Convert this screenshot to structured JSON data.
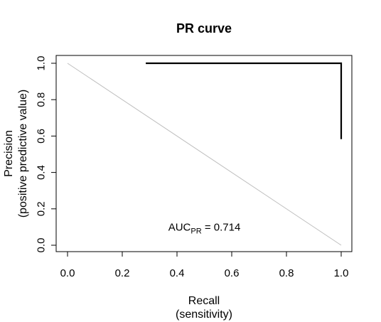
{
  "chart_data": {
    "type": "line",
    "title": "PR curve",
    "xlabel": "Recall",
    "xlabel_sub": "(sensitivity)",
    "ylabel": "Precision",
    "ylabel_sub": "(positive predictive value)",
    "xlim": [
      0,
      1
    ],
    "ylim": [
      0,
      1
    ],
    "xticks": [
      "0.0",
      "0.2",
      "0.4",
      "0.6",
      "0.8",
      "1.0"
    ],
    "yticks": [
      "0.0",
      "0.2",
      "0.4",
      "0.6",
      "0.8",
      "1.0"
    ],
    "grid": false,
    "series": [
      {
        "color": "#000000",
        "x": [
          0.286,
          1.0,
          1.0
        ],
        "y": [
          1.0,
          1.0,
          0.583
        ]
      },
      {
        "color": "#bebebe",
        "x": [
          0.0,
          1.0
        ],
        "y": [
          1.0,
          0.0
        ]
      }
    ],
    "annotation": {
      "text_main": "AUC",
      "text_sub": "PR",
      "text_value": " = 0.714",
      "x": 0.5,
      "y": 0.1
    }
  }
}
